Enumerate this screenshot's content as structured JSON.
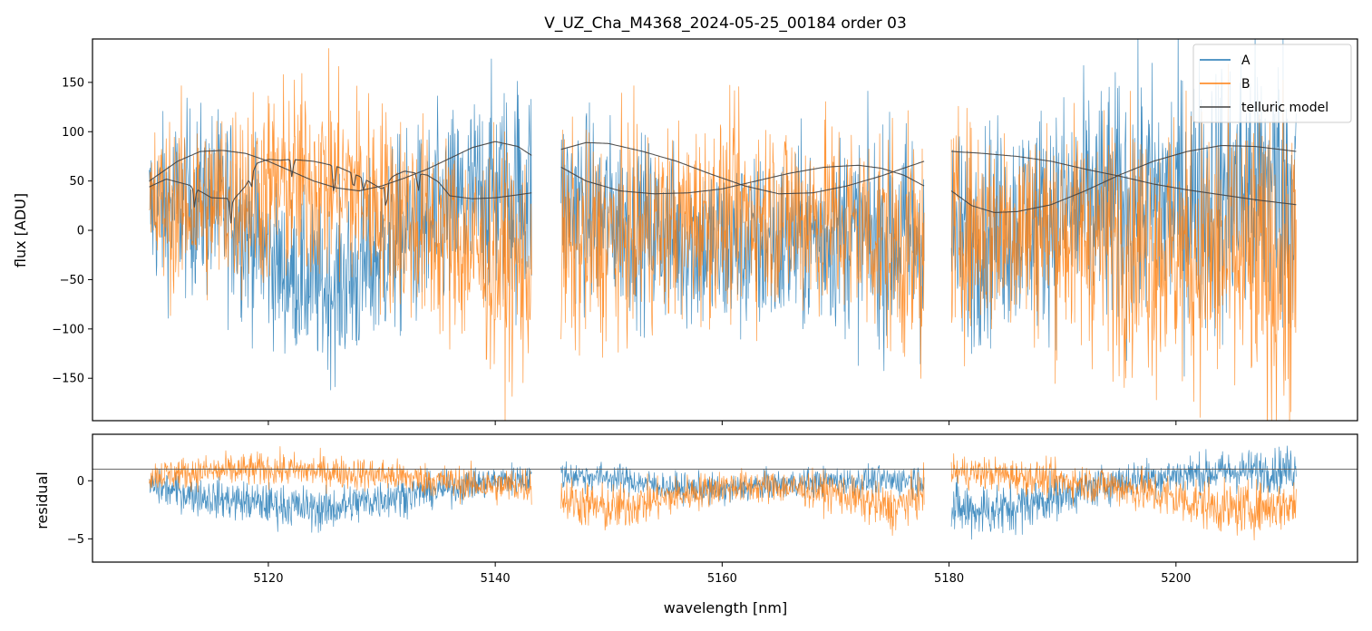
{
  "chart_data": {
    "type": "line",
    "title": "V_UZ_Cha_M4368_2024-05-25_00184  order 03",
    "xlabel": "wavelength [nm]",
    "xlim": [
      5104.5,
      5216
    ],
    "x_ticks": [
      5120,
      5140,
      5160,
      5180,
      5200
    ],
    "x_tick_labels": [
      "5120",
      "5140",
      "5160",
      "5180",
      "5200"
    ],
    "segments": [
      [
        5109.5,
        5143.2
      ],
      [
        5145.8,
        5177.8
      ],
      [
        5180.2,
        5210.6
      ]
    ],
    "panels": [
      {
        "id": "flux",
        "ylabel": "flux [ADU]",
        "ylim": [
          -193,
          194
        ],
        "y_ticks": [
          -150,
          -100,
          -50,
          0,
          50,
          100,
          150
        ],
        "y_tick_labels": [
          "−150",
          "−100",
          "−50",
          "0",
          "50",
          "100",
          "150"
        ],
        "series": [
          {
            "name": "A",
            "color": "#1f77b4",
            "kind": "noisy",
            "mean_x": [
              5109.5,
              5113,
              5117,
              5121,
              5125,
              5128,
              5131,
              5135,
              5139,
              5143.2,
              5145.8,
              5150,
              5155,
              5160,
              5165,
              5170,
              5174,
              5177.8,
              5180.2,
              5185,
              5190,
              5195,
              5200,
              5205,
              5210.6
            ],
            "mean_y": [
              20,
              30,
              20,
              -40,
              -60,
              -45,
              -10,
              10,
              35,
              40,
              30,
              15,
              -5,
              -20,
              -15,
              0,
              -10,
              -5,
              -15,
              5,
              20,
              25,
              30,
              40,
              50
            ],
            "noise": [
              75,
              85,
              90,
              70,
              75,
              85,
              90,
              95,
              100,
              110,
              90,
              85,
              80,
              85,
              85,
              90,
              95,
              110,
              100,
              100,
              105,
              115,
              120,
              135,
              140
            ]
          },
          {
            "name": "B",
            "color": "#ff7f0e",
            "kind": "noisy",
            "mean_x": [
              5109.5,
              5113,
              5117,
              5121,
              5125,
              5128,
              5131,
              5135,
              5139,
              5143.2,
              5145.8,
              5150,
              5155,
              5160,
              5165,
              5170,
              5174,
              5177.8,
              5180.2,
              5185,
              5190,
              5195,
              5200,
              5205,
              5210.6
            ],
            "mean_y": [
              20,
              25,
              35,
              45,
              50,
              40,
              20,
              -5,
              -25,
              -40,
              -20,
              -10,
              5,
              15,
              20,
              10,
              -5,
              -30,
              0,
              5,
              0,
              -10,
              -20,
              -30,
              -40
            ],
            "noise": [
              75,
              85,
              90,
              95,
              95,
              95,
              95,
              95,
              100,
              110,
              100,
              95,
              90,
              90,
              90,
              95,
              100,
              110,
              100,
              100,
              105,
              115,
              125,
              135,
              140
            ]
          },
          {
            "name": "telluric model",
            "color": "#404040",
            "kind": "line",
            "curves": [
              {
                "x": [
                  5109.5,
                  5112,
                  5114,
                  5116,
                  5118,
                  5120,
                  5122,
                  5124,
                  5126,
                  5128,
                  5130,
                  5132,
                  5134,
                  5136,
                  5138,
                  5140,
                  5142,
                  5143.2
                ],
                "y": [
                  50,
                  70,
                  80,
                  81,
                  78,
                  70,
                  60,
                  50,
                  43,
                  40,
                  45,
                  53,
                  62,
                  73,
                  84,
                  90,
                  85,
                  76
                ]
              },
              {
                "x": [
                  5109.5,
                  5111,
                  5113,
                  5115,
                  5117,
                  5118,
                  5119,
                  5120,
                  5121,
                  5122,
                  5124,
                  5126,
                  5128,
                  5130,
                  5131,
                  5132,
                  5133,
                  5134,
                  5135,
                  5136,
                  5138,
                  5140,
                  5142,
                  5143.2
                ],
                "y": [
                  44,
                  52,
                  46,
                  33,
                  32,
                  45,
                  68,
                  72,
                  71,
                  72,
                  70,
                  65,
                  55,
                  42,
                  55,
                  60,
                  58,
                  56,
                  49,
                  35,
                  32,
                  33,
                  36,
                  38
                ]
              },
              {
                "x": [
                  5145.8,
                  5148,
                  5150,
                  5153,
                  5156,
                  5159,
                  5162,
                  5165,
                  5168,
                  5171,
                  5174,
                  5176,
                  5177.8
                ],
                "y": [
                  82,
                  89,
                  88,
                  80,
                  70,
                  57,
                  45,
                  37,
                  38,
                  45,
                  55,
                  63,
                  70
                ]
              },
              {
                "x": [
                  5145.8,
                  5148,
                  5151,
                  5154,
                  5157,
                  5160,
                  5163,
                  5166,
                  5169,
                  5172,
                  5174,
                  5176,
                  5177.8
                ],
                "y": [
                  64,
                  50,
                  40,
                  37,
                  38,
                  42,
                  50,
                  58,
                  64,
                  66,
                  63,
                  56,
                  45
                ]
              },
              {
                "x": [
                  5180.2,
                  5183,
                  5186,
                  5189,
                  5192,
                  5195,
                  5198,
                  5201,
                  5204,
                  5207,
                  5210.6
                ],
                "y": [
                  80,
                  78,
                  75,
                  70,
                  62,
                  55,
                  47,
                  41,
                  36,
                  31,
                  26
                ]
              },
              {
                "x": [
                  5180.2,
                  5182,
                  5184,
                  5186,
                  5189,
                  5192,
                  5195,
                  5198,
                  5201,
                  5204,
                  5207,
                  5210.6
                ],
                "y": [
                  40,
                  25,
                  18,
                  19,
                  26,
                  40,
                  56,
                  70,
                  80,
                  86,
                  85,
                  80
                ]
              }
            ],
            "dips": [
              [
                5113.5,
                20
              ],
              [
                5116.7,
                25
              ],
              [
                5122.1,
                20
              ],
              [
                5125.8,
                35
              ],
              [
                5127.5,
                18
              ],
              [
                5128.4,
                15
              ],
              [
                5130.4,
                30
              ],
              [
                5133.2,
                20
              ],
              [
                5118.5,
                15
              ]
            ]
          }
        ]
      },
      {
        "id": "residual",
        "ylabel": "residual",
        "ylim": [
          -7,
          4
        ],
        "y_ticks": [
          -5,
          0
        ],
        "y_tick_labels": [
          "−5",
          "0"
        ],
        "reference_line_y": 1,
        "series": [
          {
            "name": "A",
            "color": "#1f77b4",
            "kind": "noisy",
            "mean_x": [
              5109.5,
              5115,
              5120,
              5125,
              5130,
              5135,
              5140,
              5143.2,
              5145.8,
              5150,
              5155,
              5160,
              5165,
              5170,
              5175,
              5177.8,
              5180.2,
              5185,
              5190,
              5195,
              5200,
              5205,
              5210.6
            ],
            "mean_y": [
              -0.5,
              -1.5,
              -2,
              -2.5,
              -1.5,
              -0.8,
              0,
              0.3,
              0.5,
              0.3,
              -0.5,
              -0.8,
              -0.3,
              0,
              0,
              0.2,
              -2.5,
              -2.5,
              -1.2,
              0,
              0.5,
              0.8,
              1
            ],
            "noise": [
              1.3,
              1.5,
              1.6,
              1.7,
              1.6,
              1.3,
              1.2,
              1.3,
              1.2,
              1.1,
              1.1,
              1.2,
              1.1,
              1.1,
              1.2,
              1.3,
              2.2,
              2.1,
              1.7,
              1.5,
              1.5,
              1.6,
              1.8
            ]
          },
          {
            "name": "B",
            "color": "#ff7f0e",
            "kind": "noisy",
            "mean_x": [
              5109.5,
              5115,
              5120,
              5125,
              5130,
              5135,
              5140,
              5143.2,
              5145.8,
              5150,
              5155,
              5160,
              5165,
              5170,
              5175,
              5177.8,
              5180.2,
              5185,
              5190,
              5195,
              5200,
              5205,
              5210.6
            ],
            "mean_y": [
              0.5,
              0.8,
              1,
              0.8,
              0.5,
              0,
              -0.5,
              -0.3,
              -1.5,
              -2.5,
              -1.5,
              -0.5,
              -0.5,
              -1,
              -2.5,
              -1,
              0.8,
              0.5,
              0,
              -0.5,
              -1.5,
              -2.5,
              -2
            ],
            "noise": [
              1.2,
              1.3,
              1.3,
              1.3,
              1.3,
              1.3,
              1.4,
              1.5,
              1.8,
              1.9,
              1.6,
              1.3,
              1.3,
              1.5,
              1.8,
              1.6,
              1.3,
              1.3,
              1.4,
              1.6,
              1.9,
              2,
              2
            ]
          }
        ]
      }
    ],
    "legend": {
      "location": "upper right",
      "entries": [
        "A",
        "B",
        "telluric model"
      ]
    }
  }
}
